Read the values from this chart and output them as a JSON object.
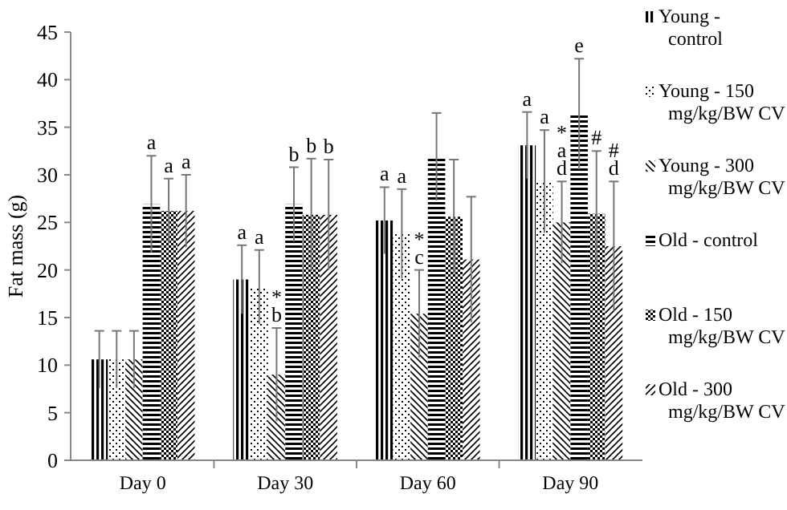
{
  "chart_data": {
    "type": "bar",
    "ylabel": "Fat mass (g)",
    "categories": [
      "Day 0",
      "Day 30",
      "Day 60",
      "Day 90"
    ],
    "ylim": [
      0,
      45
    ],
    "yticks": [
      0,
      5,
      10,
      15,
      20,
      25,
      30,
      35,
      40,
      45
    ],
    "grid": false,
    "legend": "right",
    "series": [
      {
        "name": "Young - control",
        "color": "#000000",
        "values": [
          10.6,
          19,
          25.2,
          33.1
        ],
        "errors": [
          3,
          3.6,
          3.5,
          3.5
        ],
        "value_labels": [
          null,
          "a",
          "a",
          "a"
        ]
      },
      {
        "name": "Young - 150 mg/kg/BW CV",
        "color": "#000000",
        "values": [
          10.6,
          18.2,
          23.8,
          29.3
        ],
        "errors": [
          3,
          3.9,
          4.7,
          5.4
        ],
        "value_labels": [
          null,
          "a",
          "a",
          "a"
        ]
      },
      {
        "name": "Young - 300 mg/kg/BW CV",
        "color": "#000000",
        "values": [
          10.6,
          9,
          15.4,
          25
        ],
        "errors": [
          3,
          4.9,
          4.6,
          4.3
        ],
        "value_labels": [
          null,
          "*\nb",
          "*\nc",
          "*\na\nd"
        ]
      },
      {
        "name": "Old - control",
        "color": "#000000",
        "values": [
          26.9,
          26.9,
          31.9,
          36.4
        ],
        "errors": [
          5.1,
          3.9,
          4.6,
          5.8
        ],
        "value_labels": [
          "a",
          "b",
          null,
          "e"
        ]
      },
      {
        "name": "Old - 150 mg/kg/BW CV",
        "color": "#000000",
        "values": [
          26.2,
          25.8,
          25.6,
          25.9
        ],
        "errors": [
          3.4,
          5.9,
          6,
          6.6
        ],
        "value_labels": [
          "a",
          "b",
          null,
          "#"
        ]
      },
      {
        "name": "Old - 300 mg/kg/BW CV",
        "color": "#000000",
        "values": [
          26.2,
          25.8,
          21.1,
          22.5
        ],
        "errors": [
          3.8,
          5.8,
          6.6,
          6.8
        ],
        "value_labels": [
          "a",
          "b",
          null,
          "#\nd"
        ]
      }
    ]
  }
}
